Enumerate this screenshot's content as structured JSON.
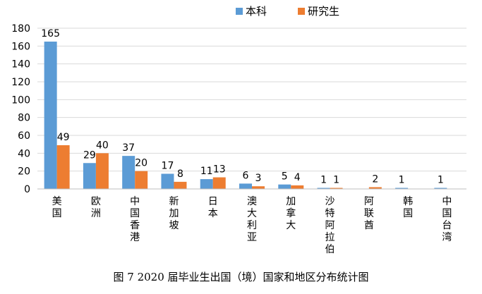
{
  "caption": "图 7   2020 届毕业生出国（境）国家和地区分布统计图",
  "chart_data": {
    "type": "bar",
    "categories": [
      "美国",
      "欧洲",
      "中国香港",
      "新加坡",
      "日本",
      "澳大利亚",
      "加拿大",
      "沙特阿拉伯",
      "阿联酋",
      "韩国",
      "中国台湾"
    ],
    "series": [
      {
        "name": "本科",
        "color": "#5b9bd5",
        "values": [
          165,
          29,
          37,
          17,
          11,
          6,
          5,
          1,
          0,
          1,
          1
        ]
      },
      {
        "name": "研究生",
        "color": "#ed7d31",
        "values": [
          49,
          40,
          20,
          8,
          13,
          3,
          4,
          1,
          2,
          0,
          0
        ]
      }
    ],
    "ylim": [
      0,
      180
    ],
    "yticks": [
      0,
      20,
      40,
      60,
      80,
      100,
      120,
      140,
      160,
      180
    ],
    "grid": true,
    "legend": "top"
  }
}
